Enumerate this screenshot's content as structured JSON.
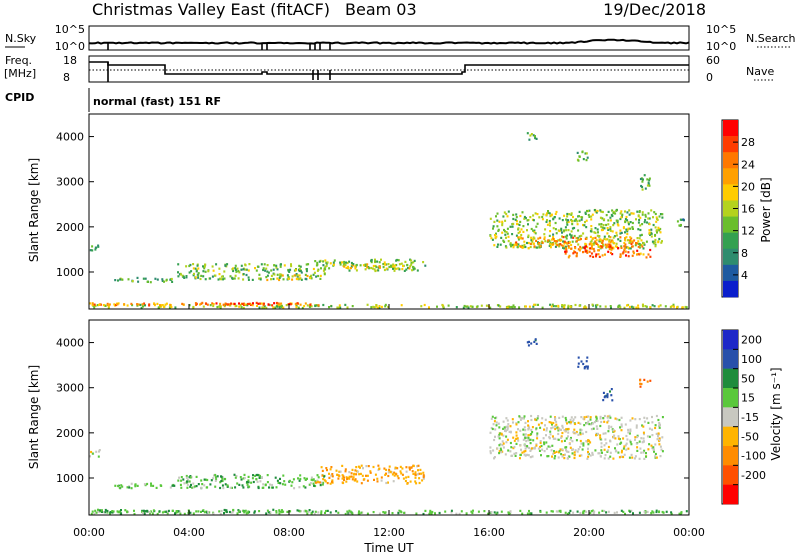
{
  "header": {
    "radar": "Christmas Valley East (fitACF)",
    "beam": "Beam 03",
    "date": "19/Dec/2018"
  },
  "status": {
    "nsky_label": "N.Sky",
    "freq_label_1": "Freq.",
    "freq_label_2": "[MHz]",
    "cpid_label": "CPID",
    "nsearch_label": "N.Search",
    "nave_label": "Nave",
    "noise_ticks": [
      "10^5",
      "10^0"
    ],
    "freq_ticks": [
      "18",
      "8"
    ],
    "nave_ticks": [
      "60",
      "0"
    ],
    "cpid_value": "normal (fast) 151 RF"
  },
  "axes": {
    "slant_range_label": "Slant Range [km]",
    "range_ticks": [
      "4000",
      "3000",
      "2000",
      "1000"
    ],
    "time_ticks": [
      "00:00",
      "04:00",
      "08:00",
      "12:00",
      "16:00",
      "20:00",
      "00:00"
    ],
    "time_label": "Time UT"
  },
  "colorbars": {
    "power_label": "Power [dB]",
    "power_ticks": [
      "28",
      "24",
      "20",
      "16",
      "12",
      "8",
      "4"
    ],
    "velocity_label": "Velocity [m s⁻¹]",
    "velocity_ticks": [
      "200",
      "100",
      "50",
      "15",
      "-15",
      "-50",
      "-100",
      "-200"
    ]
  },
  "colors": {
    "power": [
      "#ff0000",
      "#ff3c00",
      "#ff7800",
      "#ffa000",
      "#ffcc00",
      "#b4d21e",
      "#6abe2c",
      "#34a050",
      "#2e8c6e",
      "#1e5aa0",
      "#0a1ecc"
    ],
    "velocity": [
      "#1e28c8",
      "#2850aa",
      "#1e8c3c",
      "#5ac83c",
      "#c8c8c0",
      "#ffb400",
      "#ff8c00",
      "#ff5000",
      "#ff0000"
    ]
  },
  "chart_data": {
    "type": "heatmap",
    "x_range_hours": [
      0,
      24
    ],
    "range_limits_km": [
      180,
      4500
    ],
    "power_scale_db": [
      0,
      30
    ],
    "power_regions": [
      {
        "t": [
          0.0,
          24.0
        ],
        "r": [
          180,
          300
        ],
        "db": 14
      },
      {
        "t": [
          0.0,
          9.5
        ],
        "r": [
          240,
          330
        ],
        "db": 22
      },
      {
        "t": [
          4.0,
          8.5
        ],
        "r": [
          260,
          340
        ],
        "db": 25
      },
      {
        "t": [
          0.0,
          0.5
        ],
        "r": [
          1450,
          1650
        ],
        "db": 9
      },
      {
        "t": [
          1.0,
          3.5
        ],
        "r": [
          750,
          900
        ],
        "db": 11
      },
      {
        "t": [
          3.5,
          9.5
        ],
        "r": [
          800,
          1200
        ],
        "db": 12
      },
      {
        "t": [
          7.0,
          9.0
        ],
        "r": [
          800,
          950
        ],
        "db": 17
      },
      {
        "t": [
          9.0,
          13.5
        ],
        "r": [
          1000,
          1300
        ],
        "db": 13
      },
      {
        "t": [
          10.0,
          13.0
        ],
        "r": [
          1050,
          1200
        ],
        "db": 15
      },
      {
        "t": [
          16.0,
          23.0
        ],
        "r": [
          1500,
          2400
        ],
        "db": 13
      },
      {
        "t": [
          17.0,
          22.0
        ],
        "r": [
          1500,
          1800
        ],
        "db": 21
      },
      {
        "t": [
          19.0,
          22.5
        ],
        "r": [
          1300,
          1600
        ],
        "db": 24
      },
      {
        "t": [
          17.5,
          18.0
        ],
        "r": [
          3900,
          4100
        ],
        "db": 10
      },
      {
        "t": [
          19.5,
          20.0
        ],
        "r": [
          3400,
          3700
        ],
        "db": 12
      },
      {
        "t": [
          22.0,
          22.5
        ],
        "r": [
          2800,
          3200
        ],
        "db": 11
      },
      {
        "t": [
          23.5,
          24.0
        ],
        "r": [
          2000,
          2200
        ],
        "db": 9
      }
    ],
    "velocity_scale_ms": [
      -250,
      250
    ],
    "velocity_regions": [
      {
        "t": [
          0.0,
          24.0
        ],
        "r": [
          180,
          300
        ],
        "v": 30
      },
      {
        "t": [
          0.0,
          9.0
        ],
        "r": [
          220,
          320
        ],
        "v": 40
      },
      {
        "t": [
          0.0,
          0.5
        ],
        "r": [
          1450,
          1650
        ],
        "v": 0
      },
      {
        "t": [
          1.0,
          3.5
        ],
        "r": [
          750,
          900
        ],
        "v": 30
      },
      {
        "t": [
          3.5,
          9.5
        ],
        "r": [
          750,
          1100
        ],
        "v": 35
      },
      {
        "t": [
          9.0,
          13.5
        ],
        "r": [
          850,
          1300
        ],
        "v": -40
      },
      {
        "t": [
          16.0,
          23.0
        ],
        "r": [
          1400,
          2400
        ],
        "v": 0
      },
      {
        "t": [
          17.5,
          18.0
        ],
        "r": [
          3900,
          4100
        ],
        "v": 120
      },
      {
        "t": [
          19.5,
          20.0
        ],
        "r": [
          3400,
          3700
        ],
        "v": 130
      },
      {
        "t": [
          20.5,
          21.0
        ],
        "r": [
          2700,
          3000
        ],
        "v": 120
      },
      {
        "t": [
          22.0,
          22.5
        ],
        "r": [
          3000,
          3200
        ],
        "v": -100
      }
    ]
  }
}
